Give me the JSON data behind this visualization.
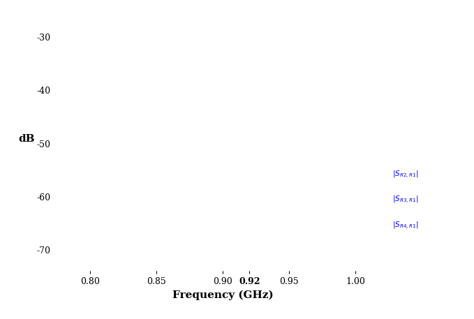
{
  "xlabel": "Frequency (GHz)",
  "ylabel": "dB",
  "xlim": [
    0.775,
    1.025
  ],
  "ylim": [
    -74,
    -26
  ],
  "xticks": [
    0.8,
    0.85,
    0.9,
    0.92,
    0.95,
    1.0
  ],
  "yticks": [
    -70,
    -60,
    -50,
    -40,
    -30
  ],
  "xtick_bold": [
    0.92
  ],
  "legend_labels": [
    "|S_{R2,R1}|",
    "|S_{R3,R1}|",
    "|S_{R4,R1}|"
  ],
  "background_color": "#ffffff",
  "tick_label_fontsize": 9,
  "xlabel_fontsize": 11,
  "ylabel_fontsize": 11,
  "legend_fontsize": 7.5
}
